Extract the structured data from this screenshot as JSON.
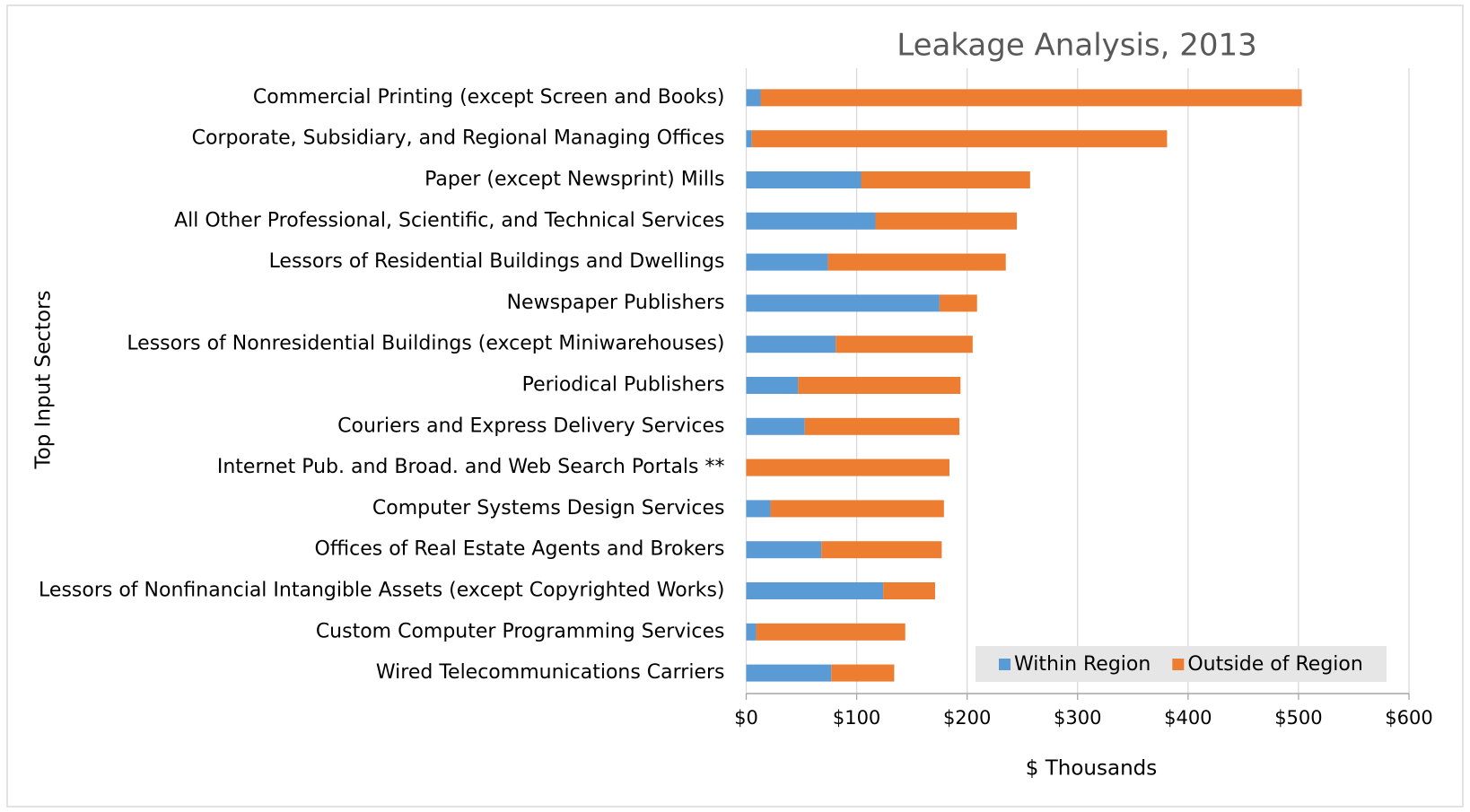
{
  "chart_data": {
    "type": "stacked_barh",
    "title": "Leakage Analysis, 2013",
    "x_label": "$ Thousands",
    "y_label": "Top Input Sectors",
    "categories": [
      "Commercial Printing (except Screen and Books)",
      "Corporate, Subsidiary, and Regional Managing Offices",
      "Paper (except Newsprint) Mills",
      "All Other Professional, Scientific, and Technical Services",
      "Lessors of Residential Buildings and Dwellings",
      "Newspaper Publishers",
      "Lessors of Nonresidential Buildings (except Miniwarehouses)",
      "Periodical Publishers",
      "Couriers and Express Delivery Services",
      "Internet Pub. and Broad. and Web Search Portals **",
      "Computer Systems Design Services",
      "Offices of Real Estate Agents and Brokers",
      "Lessors of Nonfinancial Intangible Assets (except Copyrighted Works)",
      "Custom Computer Programming Services",
      "Wired Telecommunications Carriers"
    ],
    "series": [
      {
        "name": "Within Region",
        "color": "#5b9bd5",
        "values": [
          13,
          5,
          104,
          117,
          74,
          175,
          81,
          47,
          53,
          0,
          22,
          68,
          124,
          9,
          77
        ]
      },
      {
        "name": "Outside of Region",
        "color": "#ed7d31",
        "values": [
          490,
          376,
          153,
          128,
          161,
          34,
          124,
          147,
          140,
          184,
          157,
          109,
          47,
          135,
          57
        ]
      }
    ],
    "xlim": [
      0,
      600
    ],
    "xticks": [
      {
        "value": 0,
        "label": "$0"
      },
      {
        "value": 100,
        "label": "$100"
      },
      {
        "value": 200,
        "label": "$200"
      },
      {
        "value": 300,
        "label": "$300"
      },
      {
        "value": 400,
        "label": "$400"
      },
      {
        "value": 500,
        "label": "$500"
      },
      {
        "value": 600,
        "label": "$600"
      }
    ],
    "grid": true,
    "legend": "lower right"
  }
}
